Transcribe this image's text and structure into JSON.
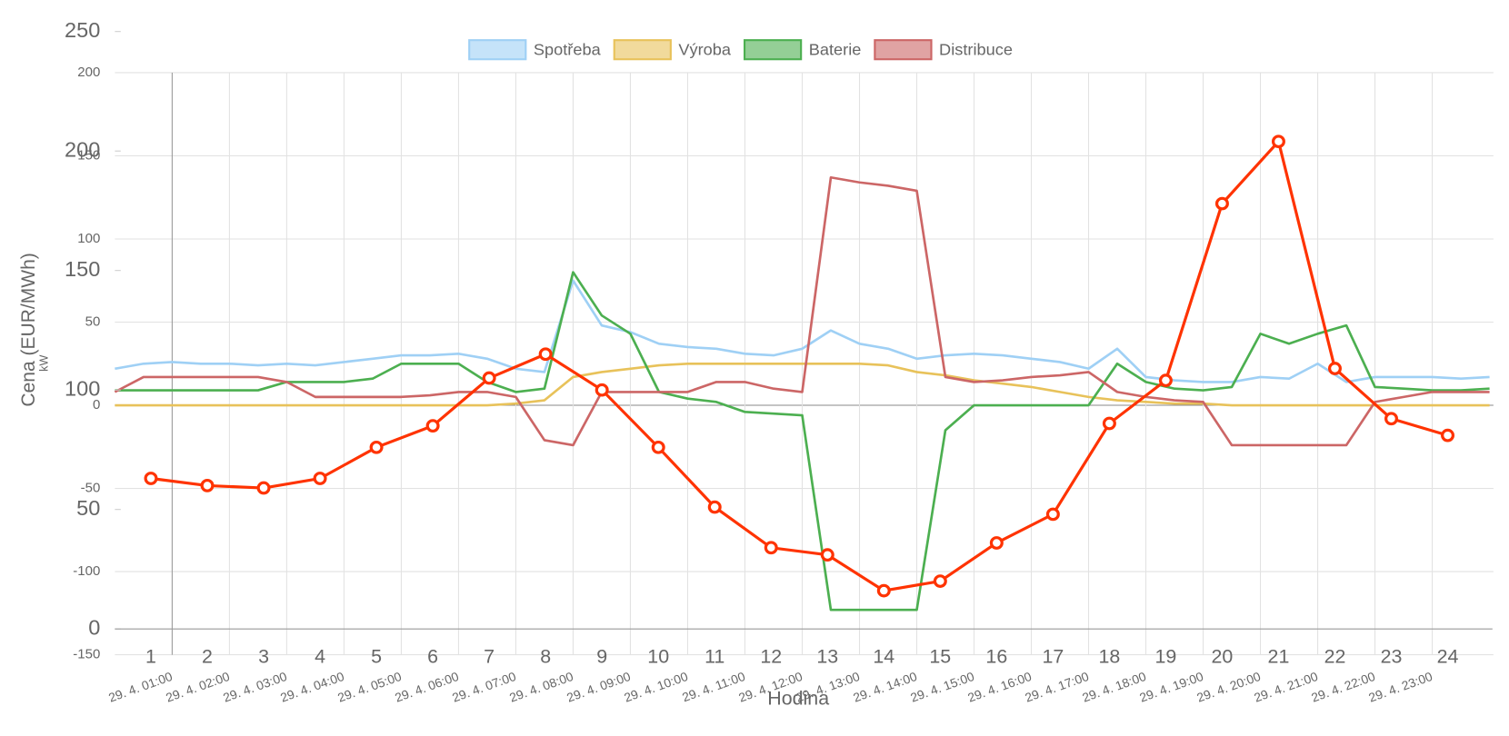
{
  "chart_data": [
    {
      "type": "line",
      "y_label": "Cena (EUR/MWh)",
      "x_label": "Hodina",
      "categories": [
        "1",
        "2",
        "3",
        "4",
        "5",
        "6",
        "7",
        "8",
        "9",
        "10",
        "11",
        "12",
        "13",
        "14",
        "15",
        "16",
        "17",
        "18",
        "19",
        "20",
        "21",
        "22",
        "23",
        "24"
      ],
      "values": [
        63,
        60,
        59,
        63,
        76,
        85,
        105,
        115,
        100,
        76,
        51,
        34,
        31,
        16,
        20,
        36,
        48,
        86,
        104,
        178,
        204,
        109,
        88,
        81
      ],
      "color": "#ff3300",
      "ylim": [
        0,
        250
      ],
      "yticks": [
        0,
        50,
        100,
        150,
        200,
        250
      ]
    },
    {
      "type": "line",
      "y_label": "kW",
      "x": [
        0,
        0.5,
        1,
        1.5,
        2,
        2.5,
        3,
        3.5,
        4,
        4.5,
        5,
        5.5,
        6,
        6.5,
        7,
        7.5,
        8,
        8.5,
        9,
        9.5,
        10,
        10.5,
        11,
        11.5,
        12,
        12.5,
        13,
        13.5,
        14,
        14.5,
        15,
        15.5,
        16,
        16.5,
        17,
        17.5,
        18,
        18.5,
        19,
        19.5,
        20,
        20.5,
        21,
        21.5,
        22,
        22.5,
        23,
        23.5,
        24
      ],
      "xlim": [
        0,
        24
      ],
      "xticks": [
        {
          "value": 1,
          "label": "29. 4. 01:00"
        },
        {
          "value": 2,
          "label": "29. 4. 02:00"
        },
        {
          "value": 3,
          "label": "29. 4. 03:00"
        },
        {
          "value": 4,
          "label": "29. 4. 04:00"
        },
        {
          "value": 5,
          "label": "29. 4. 05:00"
        },
        {
          "value": 6,
          "label": "29. 4. 06:00"
        },
        {
          "value": 7,
          "label": "29. 4. 07:00"
        },
        {
          "value": 8,
          "label": "29. 4. 08:00"
        },
        {
          "value": 9,
          "label": "29. 4. 09:00"
        },
        {
          "value": 10,
          "label": "29. 4. 10:00"
        },
        {
          "value": 11,
          "label": "29. 4. 11:00"
        },
        {
          "value": 12,
          "label": "29. 4. 12:00"
        },
        {
          "value": 13,
          "label": "29. 4. 13:00"
        },
        {
          "value": 14,
          "label": "29. 4. 14:00"
        },
        {
          "value": 15,
          "label": "29. 4. 15:00"
        },
        {
          "value": 16,
          "label": "29. 4. 16:00"
        },
        {
          "value": 17,
          "label": "29. 4. 17:00"
        },
        {
          "value": 18,
          "label": "29. 4. 18:00"
        },
        {
          "value": 19,
          "label": "29. 4. 19:00"
        },
        {
          "value": 20,
          "label": "29. 4. 20:00"
        },
        {
          "value": 21,
          "label": "29. 4. 21:00"
        },
        {
          "value": 22,
          "label": "29. 4. 22:00"
        },
        {
          "value": 23,
          "label": "29. 4. 23:00"
        }
      ],
      "ylim": [
        -150,
        200
      ],
      "yticks": [
        -150,
        -100,
        -50,
        0,
        50,
        100,
        150,
        200
      ],
      "grid": true,
      "series": [
        {
          "name": "Spotřeba",
          "color": "#9fd0f5",
          "values": [
            22,
            25,
            26,
            25,
            25,
            24,
            25,
            24,
            26,
            28,
            30,
            30,
            31,
            28,
            22,
            20,
            75,
            48,
            44,
            37,
            35,
            34,
            31,
            30,
            34,
            45,
            37,
            34,
            28,
            30,
            31,
            30,
            28,
            26,
            22,
            34,
            17,
            15,
            14,
            14,
            17,
            16,
            25,
            14,
            17,
            17,
            17,
            16,
            17
          ]
        },
        {
          "name": "Výroba",
          "color": "#e8c25a",
          "values": [
            0,
            0,
            0,
            0,
            0,
            0,
            0,
            0,
            0,
            0,
            0,
            0,
            0,
            0,
            1,
            3,
            17,
            20,
            22,
            24,
            25,
            25,
            25,
            25,
            25,
            25,
            25,
            24,
            20,
            18,
            15,
            13,
            11,
            8,
            5,
            3,
            2,
            1,
            1,
            0,
            0,
            0,
            0,
            0,
            0,
            0,
            0,
            0,
            0
          ]
        },
        {
          "name": "Baterie",
          "color": "#4caf50",
          "values": [
            9,
            9,
            9,
            9,
            9,
            9,
            14,
            14,
            14,
            16,
            25,
            25,
            25,
            14,
            8,
            10,
            80,
            54,
            43,
            8,
            4,
            2,
            -4,
            -5,
            -6,
            -123,
            -123,
            -123,
            -123,
            -15,
            0,
            0,
            0,
            0,
            0,
            25,
            14,
            10,
            9,
            11,
            43,
            37,
            43,
            48,
            11,
            10,
            9,
            9,
            10
          ]
        },
        {
          "name": "Distribuce",
          "color": "#cc6666",
          "values": [
            8,
            17,
            17,
            17,
            17,
            17,
            14,
            5,
            5,
            5,
            5,
            6,
            8,
            8,
            5,
            -21,
            -24,
            8,
            8,
            8,
            8,
            14,
            14,
            10,
            8,
            137,
            134,
            132,
            129,
            17,
            14,
            15,
            17,
            18,
            20,
            8,
            5,
            3,
            2,
            -24,
            -24,
            -24,
            -24,
            -24,
            2,
            5,
            8,
            8,
            8
          ]
        }
      ]
    }
  ]
}
